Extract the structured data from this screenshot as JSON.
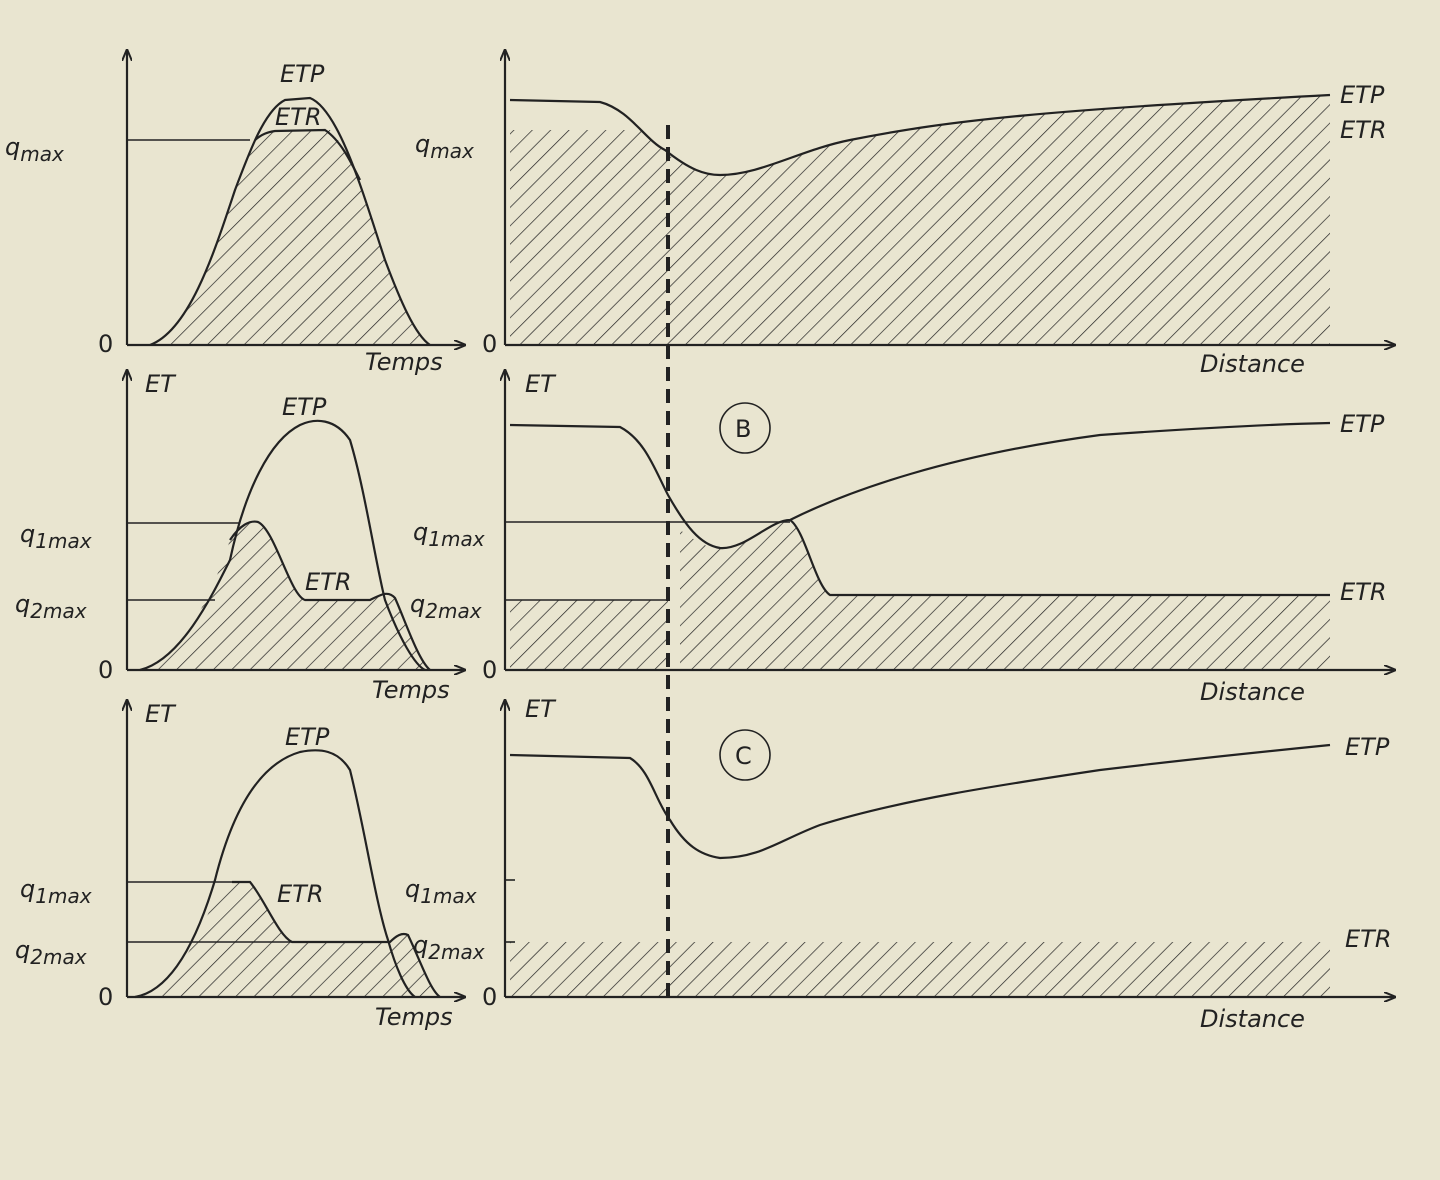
{
  "panels": [
    {
      "labels": [
        {
          "text": "ETP"
        },
        {
          "text": "ETR"
        },
        {
          "text": "q",
          "sub": "max"
        },
        {
          "text": "0"
        },
        {
          "text": "Temps"
        }
      ]
    },
    {
      "labels": [
        {
          "text": "ETP"
        },
        {
          "text": "ETR"
        },
        {
          "text": "q",
          "sub": "max"
        },
        {
          "text": "0"
        },
        {
          "text": "Distance"
        }
      ]
    },
    {
      "labels": [
        {
          "text": "ET"
        },
        {
          "text": "ETP"
        },
        {
          "text": "ETR"
        },
        {
          "text": "q",
          "sub": "1max"
        },
        {
          "text": "q",
          "sub": "2max"
        },
        {
          "text": "q",
          "sub": "2max"
        },
        {
          "text": "0"
        },
        {
          "text": "Temps"
        }
      ]
    },
    {
      "labels": [
        {
          "text": "ET"
        },
        {
          "text": "ETP"
        },
        {
          "text": "ETR"
        },
        {
          "text": "q",
          "sub": "1max"
        },
        {
          "text": "B"
        },
        {
          "text": "0"
        },
        {
          "text": "Distance"
        }
      ]
    },
    {
      "labels": [
        {
          "text": "ET"
        },
        {
          "text": "ETP"
        },
        {
          "text": "ETR"
        },
        {
          "text": "q",
          "sub": "1max"
        },
        {
          "text": "q",
          "sub": "2max"
        },
        {
          "text": "q",
          "sub": "1max"
        },
        {
          "text": "q",
          "sub": "2max"
        },
        {
          "text": "0"
        },
        {
          "text": "Temps"
        }
      ]
    },
    {
      "labels": [
        {
          "text": "ET"
        },
        {
          "text": "ETP"
        },
        {
          "text": "ETR"
        },
        {
          "text": "C"
        },
        {
          "text": "0"
        },
        {
          "text": "Distance"
        }
      ]
    }
  ]
}
